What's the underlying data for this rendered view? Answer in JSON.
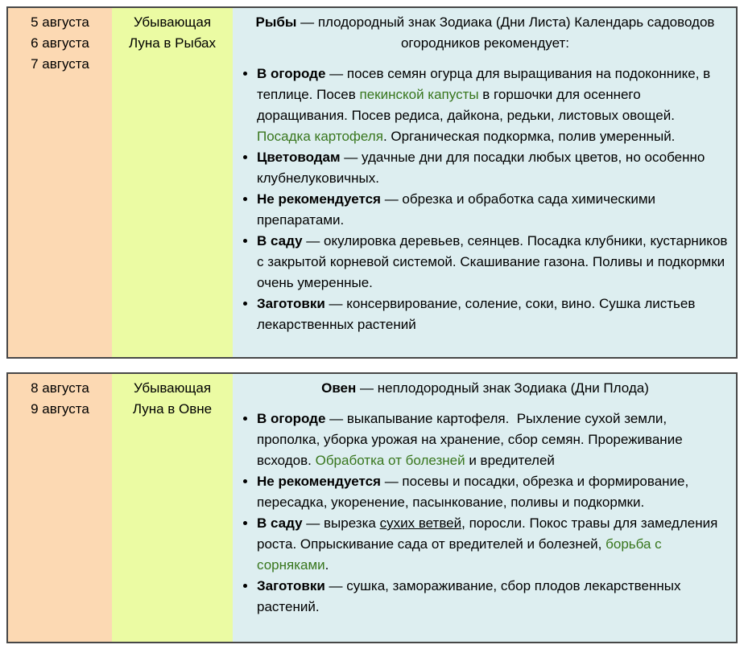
{
  "colors": {
    "dates_bg": "#fcd9b3",
    "moon_bg": "#ebfba3",
    "info_bg": "#ddeef0",
    "border": "#474747",
    "link_green": "#38761d",
    "text": "#000000"
  },
  "tables": [
    {
      "dates": [
        "5 августа",
        "6 августа",
        "7 августа"
      ],
      "moon_lines": [
        "Убывающая",
        "Луна в Рыбах"
      ],
      "header": {
        "sign": "Рыбы",
        "rest": " — плодородный знак Зодиака (Дни Листа) Календарь садоводов огородников рекомендует:"
      },
      "bullets": [
        {
          "s": [
            "В огороде",
            " — посев семян огурца для выращивания на подоконнике, в теплице. Посев ",
            "пекинской капусты",
            " в горшочки для осеннего доращивания. Посев редиса, дайкона, редьки, листовых овощей. ",
            "Посадка картофеля",
            ". Органическая подкормка, полив умеренный."
          ]
        },
        {
          "s": [
            "Цветоводам",
            " — удачные дни для посадки любых цветов, но особенно клубнелуковичных."
          ]
        },
        {
          "s": [
            "Не рекомендуется",
            " — обрезка и обработка сада химическими препаратами."
          ]
        },
        {
          "s": [
            "В саду",
            " — окулировка деревьев, сеянцев. Посадка клубники, кустарников с закрытой корневой системой. Скашивание газона. Поливы и подкормки очень умеренные."
          ]
        },
        {
          "s": [
            "Заготовки",
            " — консервирование, соление, соки, вино. Сушка листьев лекарственных растений"
          ]
        }
      ]
    },
    {
      "dates": [
        "8 августа",
        "9 августа"
      ],
      "moon_lines": [
        "Убывающая",
        "Луна в Овне"
      ],
      "header": {
        "sign": "Овен",
        "rest": " — неплодородный знак Зодиака (Дни Плода)"
      },
      "bullets": [
        {
          "s": [
            "В огороде",
            " — выкапывание картофеля.  Рыхление сухой земли, прополка, уборка урожая на хранение, сбор семян. Прореживание всходов. ",
            "Обработка от болезней",
            " и вредителей"
          ]
        },
        {
          "s": [
            "Не рекомендуется",
            " — посевы и посадки, обрезка и формирование,  пересадка, укоренение, пасынкование, поливы и подкормки."
          ]
        },
        {
          "s": [
            "В саду",
            " — вырезка ",
            "сухих ветвей",
            ", поросли. Покос травы для замедления роста. Опрыскивание сада от вредителей и болезней, ",
            "борьба с сорняками",
            "."
          ]
        },
        {
          "s": [
            "Заготовки",
            " — сушка, замораживание, сбор плодов лекарственных растений."
          ]
        }
      ]
    }
  ]
}
